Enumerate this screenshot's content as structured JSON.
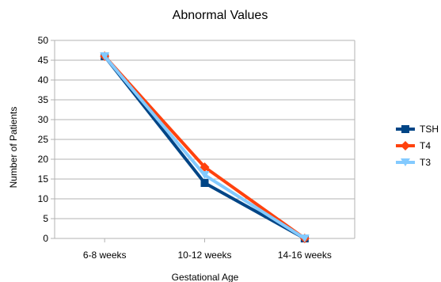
{
  "chart_data": {
    "type": "line",
    "title": "Abnormal Values",
    "xlabel": "Gestational Age",
    "ylabel": "Number of Patients",
    "categories": [
      "6-8 weeks",
      "10-12 weeks",
      "14-16 weeks"
    ],
    "ylim": [
      0,
      50
    ],
    "yticks": [
      0,
      5,
      10,
      15,
      20,
      25,
      30,
      35,
      40,
      45,
      50
    ],
    "grid": true,
    "legend_position": "right",
    "series": [
      {
        "name": "TSH",
        "values": [
          46,
          14,
          0
        ],
        "color": "#004586",
        "marker": "square"
      },
      {
        "name": "T4",
        "values": [
          46,
          18,
          0
        ],
        "color": "#ff420e",
        "marker": "diamond"
      },
      {
        "name": "T3",
        "values": [
          46,
          16,
          0
        ],
        "color": "#83caff",
        "marker": "triangle-down"
      }
    ]
  }
}
